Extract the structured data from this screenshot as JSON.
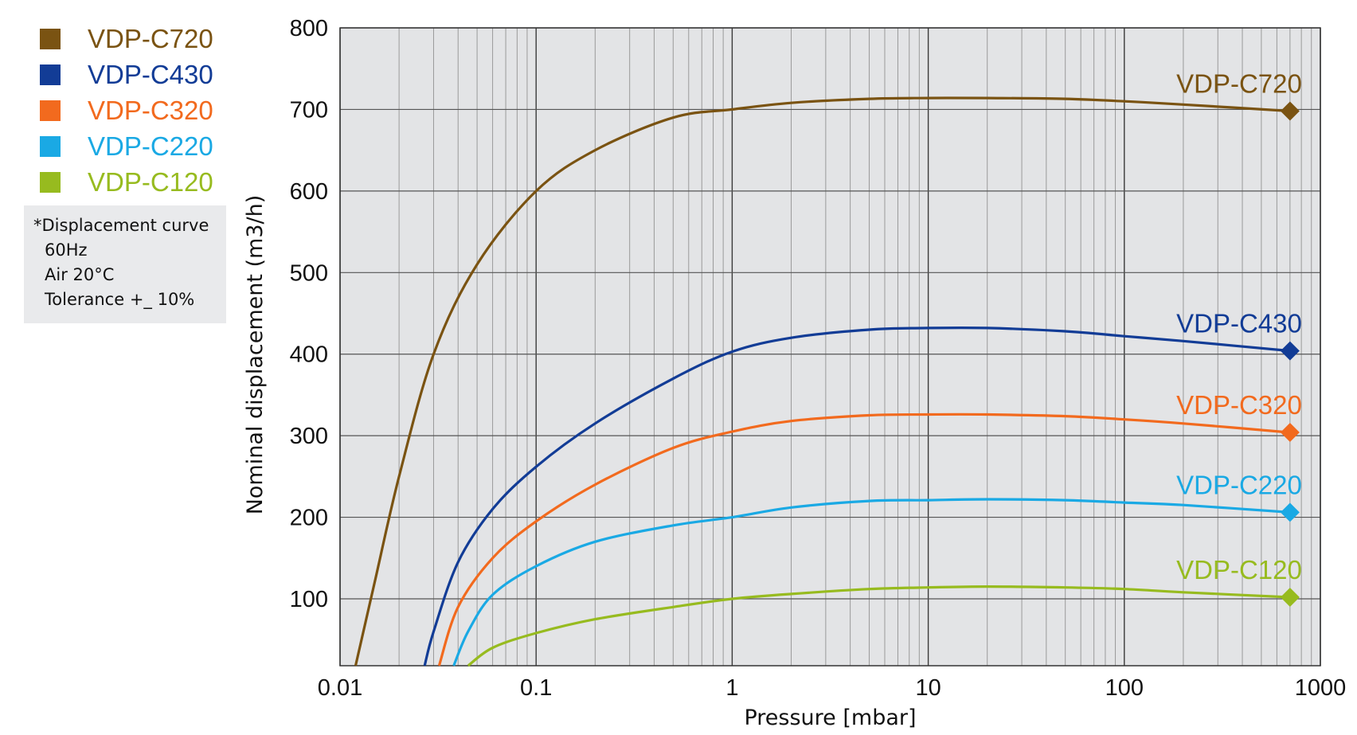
{
  "legend": [
    {
      "label": "VDP-C720",
      "color": "#7a5312"
    },
    {
      "label": "VDP-C430",
      "color": "#123c96"
    },
    {
      "label": "VDP-C320",
      "color": "#f26a1e"
    },
    {
      "label": "VDP-C220",
      "color": "#1aa9e4"
    },
    {
      "label": "VDP-C120",
      "color": "#97bb1f"
    }
  ],
  "note": {
    "line1": "*Displacement curve",
    "line2": "60Hz",
    "line3": "Air 20°C",
    "line4": "Tolerance +_ 10%"
  },
  "chart_data": {
    "type": "line",
    "xlabel": "Pressure [mbar]",
    "ylabel": "Nominal displacement (m3/h)",
    "x_scale": "log",
    "xlim": [
      0.01,
      1000
    ],
    "ylim": [
      18,
      800
    ],
    "x_ticks": [
      "0.01",
      "0.1",
      "1",
      "10",
      "100",
      "1000"
    ],
    "y_ticks": [
      "100",
      "200",
      "300",
      "400",
      "500",
      "600",
      "700",
      "800"
    ],
    "grid": true,
    "series": [
      {
        "name": "VDP-C720",
        "color": "#7a5312",
        "end_marker": "diamond",
        "x": [
          0.012,
          0.015,
          0.02,
          0.03,
          0.05,
          0.1,
          0.2,
          0.5,
          1,
          2,
          5,
          10,
          20,
          50,
          100,
          200,
          700
        ],
        "y": [
          18,
          120,
          250,
          400,
          510,
          600,
          650,
          690,
          700,
          708,
          713,
          714,
          714,
          713,
          710,
          706,
          698
        ]
      },
      {
        "name": "VDP-C430",
        "color": "#123c96",
        "end_marker": "diamond",
        "x": [
          0.027,
          0.03,
          0.04,
          0.06,
          0.1,
          0.2,
          0.5,
          1,
          2,
          5,
          10,
          20,
          50,
          100,
          200,
          700
        ],
        "y": [
          18,
          60,
          145,
          210,
          262,
          315,
          370,
          403,
          420,
          430,
          432,
          432,
          428,
          422,
          416,
          404
        ]
      },
      {
        "name": "VDP-C320",
        "color": "#f26a1e",
        "end_marker": "diamond",
        "x": [
          0.032,
          0.04,
          0.06,
          0.1,
          0.2,
          0.5,
          1,
          2,
          5,
          10,
          20,
          50,
          100,
          200,
          700
        ],
        "y": [
          18,
          90,
          150,
          195,
          240,
          285,
          305,
          318,
          325,
          326,
          326,
          324,
          320,
          315,
          304
        ]
      },
      {
        "name": "VDP-C220",
        "color": "#1aa9e4",
        "end_marker": "diamond",
        "x": [
          0.038,
          0.045,
          0.06,
          0.1,
          0.2,
          0.5,
          1,
          2,
          5,
          10,
          20,
          50,
          100,
          200,
          700
        ],
        "y": [
          18,
          60,
          105,
          140,
          170,
          190,
          200,
          212,
          220,
          221,
          222,
          221,
          218,
          215,
          206
        ]
      },
      {
        "name": "VDP-C120",
        "color": "#97bb1f",
        "end_marker": "diamond",
        "x": [
          0.045,
          0.06,
          0.1,
          0.2,
          0.5,
          1,
          2,
          5,
          10,
          20,
          50,
          100,
          200,
          700
        ],
        "y": [
          18,
          40,
          58,
          75,
          90,
          100,
          106,
          112,
          114,
          115,
          114,
          112,
          108,
          102
        ]
      }
    ],
    "end_labels": [
      "VDP-C720",
      "VDP-C430",
      "VDP-C320",
      "VDP-C220",
      "VDP-C120"
    ]
  }
}
